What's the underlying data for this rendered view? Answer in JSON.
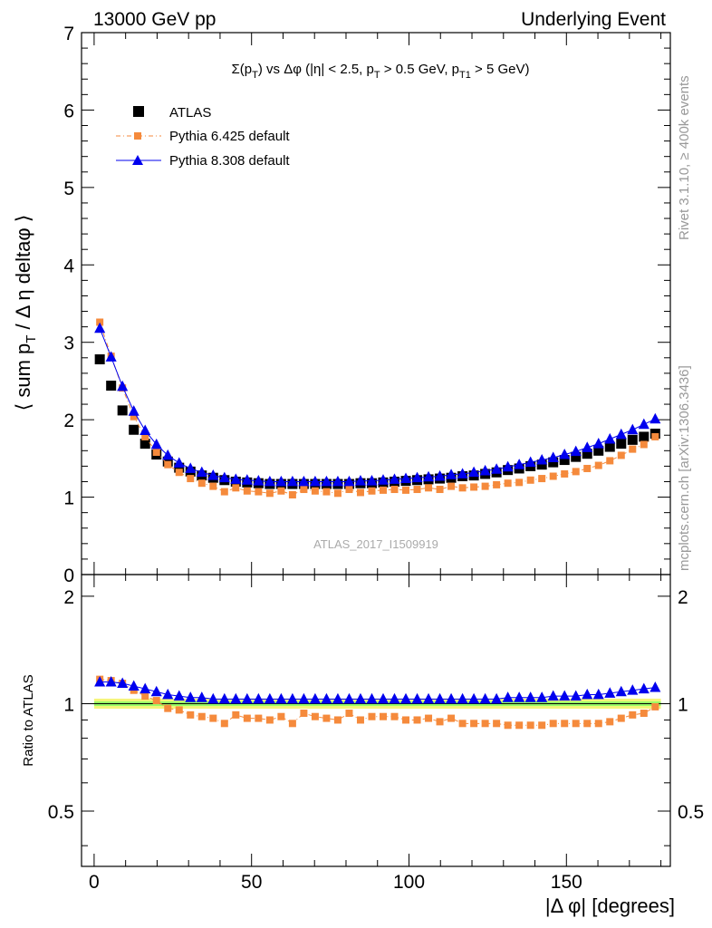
{
  "header": {
    "left": "13000 GeV pp",
    "right": "Underlying Event"
  },
  "side_labels": {
    "rivet": "Rivet 3.1.10, ≥ 400k events",
    "mcplots": "mcplots.cern.ch [arXiv:1306.3436]"
  },
  "watermark": "ATLAS_2017_I1509919",
  "colors": {
    "atlas": "#000000",
    "pythia6": "#f58a3c",
    "pythia8": "#0000ee",
    "band_yellow": "#f5f57a",
    "band_green": "#99ff66"
  },
  "chart_data": [
    {
      "type": "scatter",
      "title": "Σ(p_T) vs Δφ (|η| < 2.5, p_T > 0.5 GeV, p_T1 > 5 GeV)",
      "ylabel": "⟨ sum p_T / Δ η deltaφ ⟩",
      "xlabel": "",
      "xlim": [
        -4,
        183
      ],
      "ylim": [
        0,
        7
      ],
      "yticks": [
        0,
        1,
        2,
        3,
        4,
        5,
        6,
        7
      ],
      "xticks": [
        0,
        50,
        100,
        150
      ],
      "legend_position": "top-left",
      "series": [
        {
          "name": "ATLAS",
          "marker": "square",
          "x": [
            1.8,
            5.4,
            9.0,
            12.6,
            16.2,
            19.8,
            23.4,
            27.0,
            30.6,
            34.2,
            37.8,
            41.4,
            45.0,
            48.6,
            52.2,
            55.8,
            59.4,
            63.0,
            66.6,
            70.2,
            73.8,
            77.4,
            81.0,
            84.6,
            88.2,
            91.8,
            95.4,
            99.0,
            102.6,
            106.2,
            109.8,
            113.4,
            117.0,
            120.6,
            124.2,
            127.8,
            131.4,
            135.0,
            138.6,
            142.2,
            145.8,
            149.4,
            153.0,
            156.6,
            160.2,
            163.8,
            167.4,
            171.0,
            174.6,
            178.2
          ],
          "y": [
            2.78,
            2.44,
            2.12,
            1.87,
            1.69,
            1.55,
            1.46,
            1.38,
            1.33,
            1.28,
            1.25,
            1.22,
            1.2,
            1.19,
            1.18,
            1.17,
            1.17,
            1.17,
            1.17,
            1.17,
            1.17,
            1.17,
            1.17,
            1.18,
            1.18,
            1.19,
            1.2,
            1.21,
            1.22,
            1.23,
            1.24,
            1.25,
            1.27,
            1.28,
            1.3,
            1.32,
            1.35,
            1.37,
            1.4,
            1.42,
            1.45,
            1.48,
            1.52,
            1.56,
            1.6,
            1.65,
            1.69,
            1.74,
            1.78,
            1.82
          ]
        },
        {
          "name": "Pythia 6.425 default",
          "marker": "square-small",
          "x": [
            1.8,
            5.4,
            9.0,
            12.6,
            16.2,
            19.8,
            23.4,
            27.0,
            30.6,
            34.2,
            37.8,
            41.4,
            45.0,
            48.6,
            52.2,
            55.8,
            59.4,
            63.0,
            66.6,
            70.2,
            73.8,
            77.4,
            81.0,
            84.6,
            88.2,
            91.8,
            95.4,
            99.0,
            102.6,
            106.2,
            109.8,
            113.4,
            117.0,
            120.6,
            124.2,
            127.8,
            131.4,
            135.0,
            138.6,
            142.2,
            145.8,
            149.4,
            153.0,
            156.6,
            160.2,
            163.8,
            167.4,
            171.0,
            174.6,
            178.2
          ],
          "y": [
            3.26,
            2.82,
            2.41,
            2.04,
            1.78,
            1.58,
            1.42,
            1.32,
            1.24,
            1.18,
            1.14,
            1.07,
            1.12,
            1.08,
            1.07,
            1.05,
            1.08,
            1.03,
            1.1,
            1.08,
            1.07,
            1.05,
            1.1,
            1.06,
            1.08,
            1.09,
            1.1,
            1.09,
            1.1,
            1.12,
            1.1,
            1.14,
            1.12,
            1.13,
            1.14,
            1.16,
            1.18,
            1.19,
            1.22,
            1.24,
            1.27,
            1.3,
            1.33,
            1.37,
            1.41,
            1.47,
            1.54,
            1.62,
            1.68,
            1.78
          ]
        },
        {
          "name": "Pythia 8.308 default",
          "marker": "triangle",
          "x": [
            1.8,
            5.4,
            9.0,
            12.6,
            16.2,
            19.8,
            23.4,
            27.0,
            30.6,
            34.2,
            37.8,
            41.4,
            45.0,
            48.6,
            52.2,
            55.8,
            59.4,
            63.0,
            66.6,
            70.2,
            73.8,
            77.4,
            81.0,
            84.6,
            88.2,
            91.8,
            95.4,
            99.0,
            102.6,
            106.2,
            109.8,
            113.4,
            117.0,
            120.6,
            124.2,
            127.8,
            131.4,
            135.0,
            138.6,
            142.2,
            145.8,
            149.4,
            153.0,
            156.6,
            160.2,
            163.8,
            167.4,
            171.0,
            174.6,
            178.2
          ],
          "y": [
            3.18,
            2.81,
            2.43,
            2.11,
            1.86,
            1.68,
            1.54,
            1.44,
            1.37,
            1.32,
            1.28,
            1.25,
            1.23,
            1.22,
            1.21,
            1.2,
            1.2,
            1.2,
            1.2,
            1.2,
            1.2,
            1.2,
            1.2,
            1.21,
            1.21,
            1.22,
            1.23,
            1.24,
            1.25,
            1.26,
            1.27,
            1.29,
            1.3,
            1.32,
            1.34,
            1.36,
            1.39,
            1.42,
            1.45,
            1.48,
            1.51,
            1.55,
            1.59,
            1.64,
            1.69,
            1.75,
            1.81,
            1.87,
            1.94,
            2.01
          ]
        }
      ]
    },
    {
      "type": "scatter",
      "title": "",
      "ylabel": "Ratio to ATLAS",
      "xlabel": "|Δ φ| [degrees]",
      "xlim": [
        -4,
        183
      ],
      "ylim": [
        0.35,
        2.3
      ],
      "yticks": [
        0.5,
        1,
        2
      ],
      "xticks": [
        0,
        50,
        100,
        150
      ],
      "reference_band": [
        0.985,
        1.015
      ],
      "series": [
        {
          "name": "Pythia 6.425 default",
          "marker": "square-small",
          "x": [
            1.8,
            5.4,
            9.0,
            12.6,
            16.2,
            19.8,
            23.4,
            27.0,
            30.6,
            34.2,
            37.8,
            41.4,
            45.0,
            48.6,
            52.2,
            55.8,
            59.4,
            63.0,
            66.6,
            70.2,
            73.8,
            77.4,
            81.0,
            84.6,
            88.2,
            91.8,
            95.4,
            99.0,
            102.6,
            106.2,
            109.8,
            113.4,
            117.0,
            120.6,
            124.2,
            127.8,
            131.4,
            135.0,
            138.6,
            142.2,
            145.8,
            149.4,
            153.0,
            156.6,
            160.2,
            163.8,
            167.4,
            171.0,
            174.6,
            178.2
          ],
          "y": [
            1.17,
            1.16,
            1.14,
            1.09,
            1.05,
            1.02,
            0.97,
            0.96,
            0.93,
            0.92,
            0.91,
            0.88,
            0.93,
            0.91,
            0.91,
            0.9,
            0.92,
            0.88,
            0.94,
            0.92,
            0.91,
            0.9,
            0.94,
            0.9,
            0.92,
            0.92,
            0.92,
            0.9,
            0.9,
            0.91,
            0.89,
            0.91,
            0.88,
            0.88,
            0.88,
            0.88,
            0.87,
            0.87,
            0.87,
            0.87,
            0.88,
            0.88,
            0.88,
            0.88,
            0.88,
            0.89,
            0.91,
            0.93,
            0.94,
            0.98
          ]
        },
        {
          "name": "Pythia 8.308 default",
          "marker": "triangle",
          "x": [
            1.8,
            5.4,
            9.0,
            12.6,
            16.2,
            19.8,
            23.4,
            27.0,
            30.6,
            34.2,
            37.8,
            41.4,
            45.0,
            48.6,
            52.2,
            55.8,
            59.4,
            63.0,
            66.6,
            70.2,
            73.8,
            77.4,
            81.0,
            84.6,
            88.2,
            91.8,
            95.4,
            99.0,
            102.6,
            106.2,
            109.8,
            113.4,
            117.0,
            120.6,
            124.2,
            127.8,
            131.4,
            135.0,
            138.6,
            142.2,
            145.8,
            149.4,
            153.0,
            156.6,
            160.2,
            163.8,
            167.4,
            171.0,
            174.6,
            178.2
          ],
          "y": [
            1.15,
            1.15,
            1.14,
            1.12,
            1.1,
            1.08,
            1.06,
            1.05,
            1.04,
            1.04,
            1.03,
            1.03,
            1.03,
            1.03,
            1.03,
            1.03,
            1.03,
            1.03,
            1.03,
            1.03,
            1.03,
            1.03,
            1.03,
            1.03,
            1.03,
            1.03,
            1.03,
            1.03,
            1.03,
            1.03,
            1.03,
            1.03,
            1.03,
            1.03,
            1.03,
            1.03,
            1.04,
            1.04,
            1.04,
            1.04,
            1.05,
            1.05,
            1.05,
            1.06,
            1.06,
            1.07,
            1.08,
            1.09,
            1.1,
            1.11
          ]
        }
      ]
    }
  ]
}
